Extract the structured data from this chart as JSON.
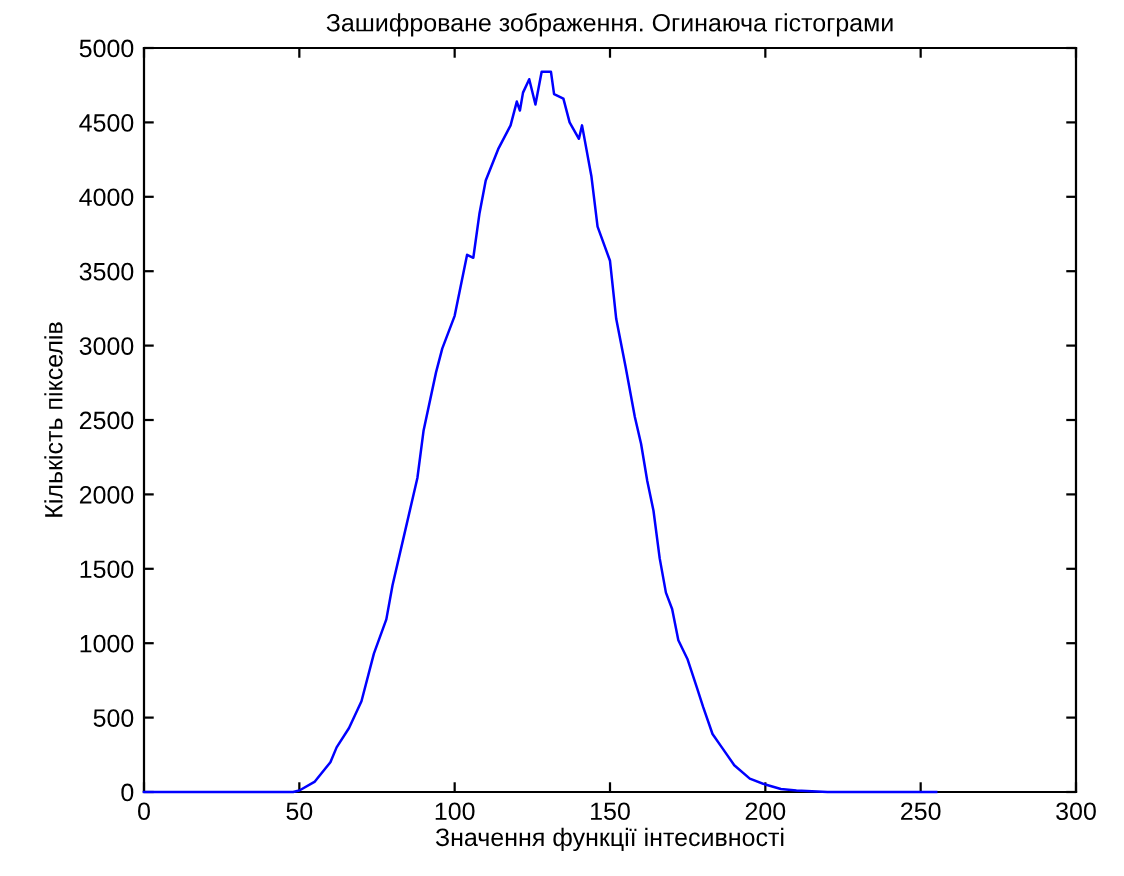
{
  "chart_data": {
    "type": "line",
    "title": "Зашифроване зображення. Огинаюча гістограми",
    "xlabel": "Значення функції інтесивності",
    "ylabel": "Кількість пікселів",
    "x": [
      0,
      10,
      20,
      30,
      40,
      48,
      50,
      55,
      60,
      62,
      66,
      70,
      74,
      78,
      80,
      84,
      88,
      90,
      94,
      96,
      100,
      104,
      106,
      108,
      110,
      114,
      118,
      120,
      121,
      122,
      124,
      126,
      128,
      131,
      132,
      135,
      137,
      140,
      141,
      144,
      146,
      150,
      152,
      155,
      158,
      160,
      162,
      164,
      166,
      168,
      170,
      172,
      175,
      178,
      180,
      183,
      186,
      190,
      195,
      200,
      205,
      210,
      220,
      230,
      240,
      255
    ],
    "series": [
      {
        "color": "#0000ff",
        "values": [
          0,
          0,
          0,
          0,
          0,
          0,
          10,
          70,
          200,
          300,
          430,
          610,
          930,
          1160,
          1390,
          1750,
          2110,
          2430,
          2820,
          2980,
          3200,
          3610,
          3590,
          3890,
          4110,
          4320,
          4480,
          4640,
          4580,
          4700,
          4790,
          4620,
          4840,
          4840,
          4690,
          4660,
          4500,
          4390,
          4480,
          4140,
          3800,
          3570,
          3180,
          2860,
          2520,
          2340,
          2090,
          1890,
          1570,
          1340,
          1230,
          1020,
          890,
          700,
          570,
          390,
          300,
          180,
          90,
          50,
          20,
          10,
          0,
          0,
          0,
          0
        ]
      }
    ],
    "xlim": [
      0,
      300
    ],
    "ylim": [
      0,
      5000
    ],
    "xticks": [
      0,
      50,
      100,
      150,
      200,
      250,
      300
    ],
    "yticks": [
      0,
      500,
      1000,
      1500,
      2000,
      2500,
      3000,
      3500,
      4000,
      4500,
      5000
    ],
    "grid": false,
    "legend": false
  }
}
